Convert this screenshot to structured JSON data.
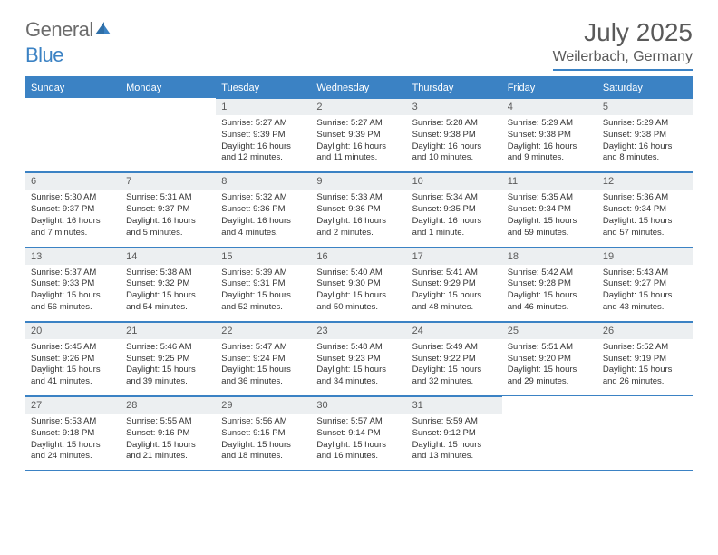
{
  "brand": {
    "part1": "General",
    "part2": "Blue"
  },
  "title": "July 2025",
  "location": "Weilerbach, Germany",
  "colors": {
    "accent": "#3b82c4",
    "header_text": "#ffffff",
    "daynum_bg": "#eceff1",
    "text_muted": "#5a5a5a",
    "body_text": "#333333",
    "page_bg": "#ffffff"
  },
  "fonts": {
    "title_pt": 28,
    "location_pt": 16,
    "dow_pt": 11,
    "daynum_pt": 11,
    "body_pt": 9.5
  },
  "days_of_week": [
    "Sunday",
    "Monday",
    "Tuesday",
    "Wednesday",
    "Thursday",
    "Friday",
    "Saturday"
  ],
  "weeks": [
    [
      null,
      null,
      {
        "n": "1",
        "sunrise": "Sunrise: 5:27 AM",
        "sunset": "Sunset: 9:39 PM",
        "daylight": "Daylight: 16 hours and 12 minutes."
      },
      {
        "n": "2",
        "sunrise": "Sunrise: 5:27 AM",
        "sunset": "Sunset: 9:39 PM",
        "daylight": "Daylight: 16 hours and 11 minutes."
      },
      {
        "n": "3",
        "sunrise": "Sunrise: 5:28 AM",
        "sunset": "Sunset: 9:38 PM",
        "daylight": "Daylight: 16 hours and 10 minutes."
      },
      {
        "n": "4",
        "sunrise": "Sunrise: 5:29 AM",
        "sunset": "Sunset: 9:38 PM",
        "daylight": "Daylight: 16 hours and 9 minutes."
      },
      {
        "n": "5",
        "sunrise": "Sunrise: 5:29 AM",
        "sunset": "Sunset: 9:38 PM",
        "daylight": "Daylight: 16 hours and 8 minutes."
      }
    ],
    [
      {
        "n": "6",
        "sunrise": "Sunrise: 5:30 AM",
        "sunset": "Sunset: 9:37 PM",
        "daylight": "Daylight: 16 hours and 7 minutes."
      },
      {
        "n": "7",
        "sunrise": "Sunrise: 5:31 AM",
        "sunset": "Sunset: 9:37 PM",
        "daylight": "Daylight: 16 hours and 5 minutes."
      },
      {
        "n": "8",
        "sunrise": "Sunrise: 5:32 AM",
        "sunset": "Sunset: 9:36 PM",
        "daylight": "Daylight: 16 hours and 4 minutes."
      },
      {
        "n": "9",
        "sunrise": "Sunrise: 5:33 AM",
        "sunset": "Sunset: 9:36 PM",
        "daylight": "Daylight: 16 hours and 2 minutes."
      },
      {
        "n": "10",
        "sunrise": "Sunrise: 5:34 AM",
        "sunset": "Sunset: 9:35 PM",
        "daylight": "Daylight: 16 hours and 1 minute."
      },
      {
        "n": "11",
        "sunrise": "Sunrise: 5:35 AM",
        "sunset": "Sunset: 9:34 PM",
        "daylight": "Daylight: 15 hours and 59 minutes."
      },
      {
        "n": "12",
        "sunrise": "Sunrise: 5:36 AM",
        "sunset": "Sunset: 9:34 PM",
        "daylight": "Daylight: 15 hours and 57 minutes."
      }
    ],
    [
      {
        "n": "13",
        "sunrise": "Sunrise: 5:37 AM",
        "sunset": "Sunset: 9:33 PM",
        "daylight": "Daylight: 15 hours and 56 minutes."
      },
      {
        "n": "14",
        "sunrise": "Sunrise: 5:38 AM",
        "sunset": "Sunset: 9:32 PM",
        "daylight": "Daylight: 15 hours and 54 minutes."
      },
      {
        "n": "15",
        "sunrise": "Sunrise: 5:39 AM",
        "sunset": "Sunset: 9:31 PM",
        "daylight": "Daylight: 15 hours and 52 minutes."
      },
      {
        "n": "16",
        "sunrise": "Sunrise: 5:40 AM",
        "sunset": "Sunset: 9:30 PM",
        "daylight": "Daylight: 15 hours and 50 minutes."
      },
      {
        "n": "17",
        "sunrise": "Sunrise: 5:41 AM",
        "sunset": "Sunset: 9:29 PM",
        "daylight": "Daylight: 15 hours and 48 minutes."
      },
      {
        "n": "18",
        "sunrise": "Sunrise: 5:42 AM",
        "sunset": "Sunset: 9:28 PM",
        "daylight": "Daylight: 15 hours and 46 minutes."
      },
      {
        "n": "19",
        "sunrise": "Sunrise: 5:43 AM",
        "sunset": "Sunset: 9:27 PM",
        "daylight": "Daylight: 15 hours and 43 minutes."
      }
    ],
    [
      {
        "n": "20",
        "sunrise": "Sunrise: 5:45 AM",
        "sunset": "Sunset: 9:26 PM",
        "daylight": "Daylight: 15 hours and 41 minutes."
      },
      {
        "n": "21",
        "sunrise": "Sunrise: 5:46 AM",
        "sunset": "Sunset: 9:25 PM",
        "daylight": "Daylight: 15 hours and 39 minutes."
      },
      {
        "n": "22",
        "sunrise": "Sunrise: 5:47 AM",
        "sunset": "Sunset: 9:24 PM",
        "daylight": "Daylight: 15 hours and 36 minutes."
      },
      {
        "n": "23",
        "sunrise": "Sunrise: 5:48 AM",
        "sunset": "Sunset: 9:23 PM",
        "daylight": "Daylight: 15 hours and 34 minutes."
      },
      {
        "n": "24",
        "sunrise": "Sunrise: 5:49 AM",
        "sunset": "Sunset: 9:22 PM",
        "daylight": "Daylight: 15 hours and 32 minutes."
      },
      {
        "n": "25",
        "sunrise": "Sunrise: 5:51 AM",
        "sunset": "Sunset: 9:20 PM",
        "daylight": "Daylight: 15 hours and 29 minutes."
      },
      {
        "n": "26",
        "sunrise": "Sunrise: 5:52 AM",
        "sunset": "Sunset: 9:19 PM",
        "daylight": "Daylight: 15 hours and 26 minutes."
      }
    ],
    [
      {
        "n": "27",
        "sunrise": "Sunrise: 5:53 AM",
        "sunset": "Sunset: 9:18 PM",
        "daylight": "Daylight: 15 hours and 24 minutes."
      },
      {
        "n": "28",
        "sunrise": "Sunrise: 5:55 AM",
        "sunset": "Sunset: 9:16 PM",
        "daylight": "Daylight: 15 hours and 21 minutes."
      },
      {
        "n": "29",
        "sunrise": "Sunrise: 5:56 AM",
        "sunset": "Sunset: 9:15 PM",
        "daylight": "Daylight: 15 hours and 18 minutes."
      },
      {
        "n": "30",
        "sunrise": "Sunrise: 5:57 AM",
        "sunset": "Sunset: 9:14 PM",
        "daylight": "Daylight: 15 hours and 16 minutes."
      },
      {
        "n": "31",
        "sunrise": "Sunrise: 5:59 AM",
        "sunset": "Sunset: 9:12 PM",
        "daylight": "Daylight: 15 hours and 13 minutes."
      },
      null,
      null
    ]
  ]
}
